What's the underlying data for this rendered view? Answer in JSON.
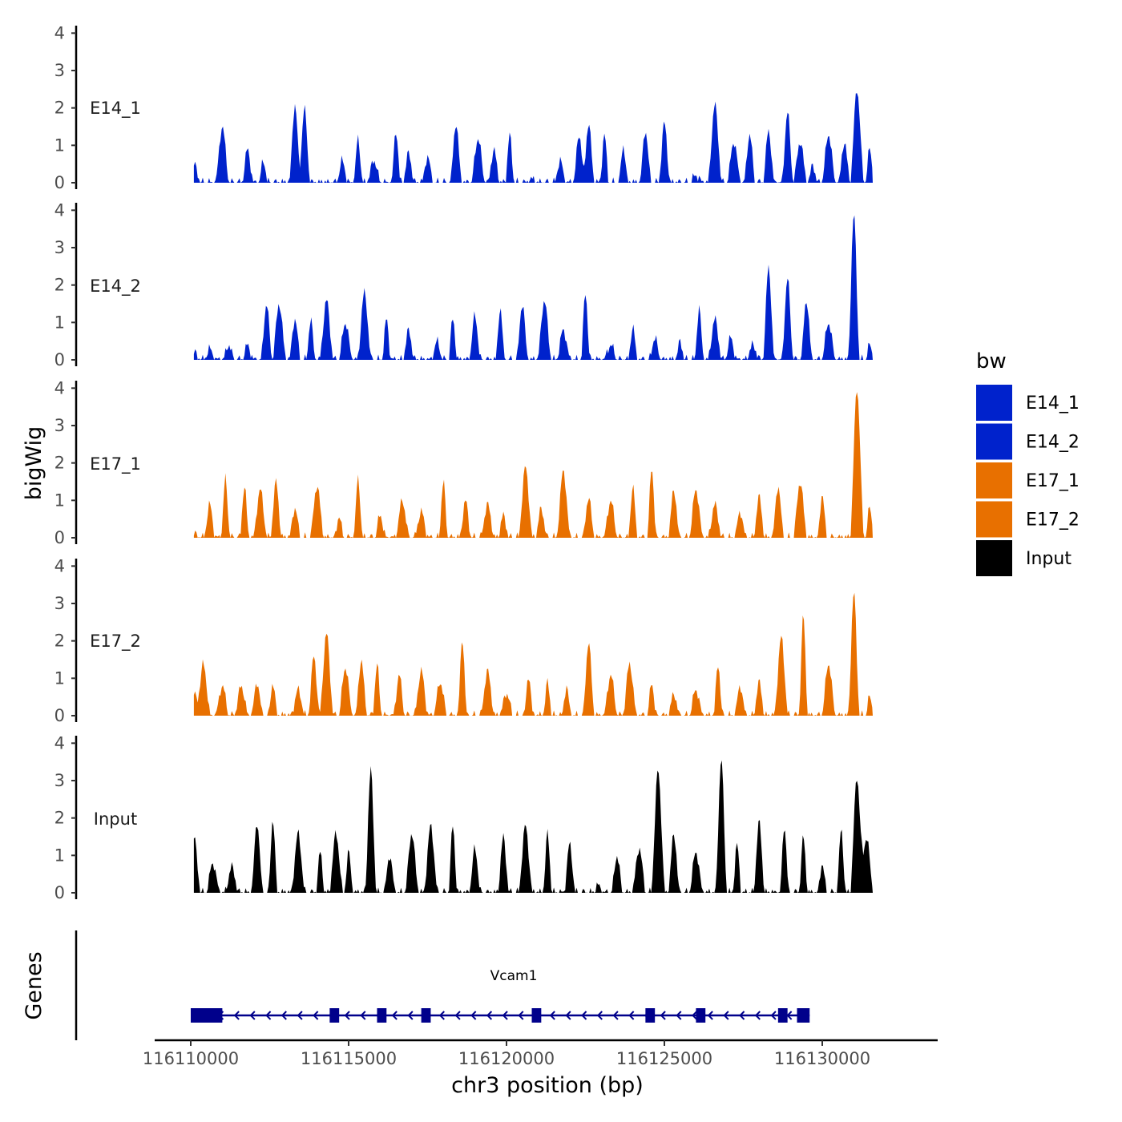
{
  "chart_data": {
    "type": "area",
    "title": "",
    "ylabel": "bigWig",
    "xlabel": "chr3 position (bp)",
    "xlim": [
      116106200,
      116133300
    ],
    "ylim": [
      0,
      4.2
    ],
    "yticks": [
      0,
      1,
      2,
      3,
      4
    ],
    "xticks": [
      116110000,
      116115000,
      116120000,
      116125000,
      116130000
    ],
    "xtick_labels": [
      "116110000",
      "116115000",
      "116120000",
      "116125000",
      "116130000"
    ],
    "x_start": 116110100,
    "x_end": 116131600,
    "tracks": [
      {
        "name": "E14_1",
        "color": "#0022CC",
        "peaks": [
          [
            116110100,
            0.5
          ],
          [
            116111000,
            1.5
          ],
          [
            116111800,
            0.9
          ],
          [
            116112300,
            0.6
          ],
          [
            116113300,
            2.1
          ],
          [
            116113600,
            2.0
          ],
          [
            116114800,
            0.6
          ],
          [
            116115300,
            1.2
          ],
          [
            116115800,
            0.6
          ],
          [
            116116500,
            1.4
          ],
          [
            116116900,
            0.8
          ],
          [
            116117500,
            0.7
          ],
          [
            116118400,
            1.6
          ],
          [
            116119100,
            1.2
          ],
          [
            116119600,
            0.9
          ],
          [
            116120100,
            1.3
          ],
          [
            116120800,
            0.1
          ],
          [
            116121700,
            0.6
          ],
          [
            116122300,
            1.3
          ],
          [
            116122600,
            1.6
          ],
          [
            116123100,
            1.3
          ],
          [
            116123700,
            1.0
          ],
          [
            116124400,
            1.4
          ],
          [
            116125000,
            1.6
          ],
          [
            116126000,
            0.2
          ],
          [
            116126600,
            2.1
          ],
          [
            116127200,
            1.1
          ],
          [
            116127700,
            1.3
          ],
          [
            116128300,
            1.4
          ],
          [
            116128900,
            1.9
          ],
          [
            116129300,
            1.1
          ],
          [
            116129700,
            0.5
          ],
          [
            116130200,
            1.3
          ],
          [
            116130700,
            1.1
          ],
          [
            116131100,
            2.5
          ],
          [
            116131500,
            0.9
          ]
        ]
      },
      {
        "name": "E14_2",
        "color": "#0022CC",
        "peaks": [
          [
            116110100,
            0.2
          ],
          [
            116110600,
            0.3
          ],
          [
            116111200,
            0.4
          ],
          [
            116111800,
            0.4
          ],
          [
            116112400,
            1.5
          ],
          [
            116112800,
            1.5
          ],
          [
            116113300,
            1.1
          ],
          [
            116113800,
            1.1
          ],
          [
            116114300,
            1.6
          ],
          [
            116114900,
            1.0
          ],
          [
            116115500,
            1.8
          ],
          [
            116116200,
            1.1
          ],
          [
            116116900,
            0.8
          ],
          [
            116117800,
            0.5
          ],
          [
            116118300,
            1.1
          ],
          [
            116119000,
            1.2
          ],
          [
            116119800,
            1.4
          ],
          [
            116120500,
            1.5
          ],
          [
            116121200,
            1.6
          ],
          [
            116121800,
            0.8
          ],
          [
            116122500,
            1.8
          ],
          [
            116123300,
            0.4
          ],
          [
            116124000,
            0.9
          ],
          [
            116124700,
            0.6
          ],
          [
            116125500,
            0.5
          ],
          [
            116126100,
            1.4
          ],
          [
            116126600,
            1.1
          ],
          [
            116127100,
            0.6
          ],
          [
            116127800,
            0.4
          ],
          [
            116128300,
            2.5
          ],
          [
            116128900,
            2.2
          ],
          [
            116129500,
            1.6
          ],
          [
            116130200,
            1.0
          ],
          [
            116131000,
            3.9
          ],
          [
            116131500,
            0.4
          ]
        ]
      },
      {
        "name": "E17_1",
        "color": "#E87000",
        "peaks": [
          [
            116110100,
            0.1
          ],
          [
            116110600,
            0.9
          ],
          [
            116111100,
            1.6
          ],
          [
            116111700,
            1.4
          ],
          [
            116112200,
            1.3
          ],
          [
            116112700,
            1.5
          ],
          [
            116113300,
            0.8
          ],
          [
            116114000,
            1.4
          ],
          [
            116114700,
            0.6
          ],
          [
            116115300,
            1.6
          ],
          [
            116116000,
            0.6
          ],
          [
            116116700,
            1.0
          ],
          [
            116117300,
            0.7
          ],
          [
            116118000,
            1.5
          ],
          [
            116118700,
            1.0
          ],
          [
            116119400,
            0.9
          ],
          [
            116119900,
            0.6
          ],
          [
            116120600,
            1.9
          ],
          [
            116121100,
            0.8
          ],
          [
            116121800,
            1.8
          ],
          [
            116122600,
            1.1
          ],
          [
            116123300,
            1.0
          ],
          [
            116124000,
            1.4
          ],
          [
            116124600,
            1.9
          ],
          [
            116125300,
            1.3
          ],
          [
            116126000,
            1.3
          ],
          [
            116126600,
            0.9
          ],
          [
            116127400,
            0.7
          ],
          [
            116128000,
            1.1
          ],
          [
            116128600,
            1.4
          ],
          [
            116129300,
            1.5
          ],
          [
            116130000,
            1.2
          ],
          [
            116131100,
            4.0
          ],
          [
            116131500,
            0.8
          ]
        ]
      },
      {
        "name": "E17_2",
        "color": "#E87000",
        "peaks": [
          [
            116110100,
            0.6
          ],
          [
            116110400,
            1.4
          ],
          [
            116111000,
            0.8
          ],
          [
            116111600,
            0.8
          ],
          [
            116112100,
            0.9
          ],
          [
            116112600,
            0.9
          ],
          [
            116113400,
            0.7
          ],
          [
            116113900,
            1.6
          ],
          [
            116114300,
            2.2
          ],
          [
            116114900,
            1.3
          ],
          [
            116115400,
            1.5
          ],
          [
            116115900,
            1.4
          ],
          [
            116116600,
            1.1
          ],
          [
            116117300,
            1.2
          ],
          [
            116117900,
            0.9
          ],
          [
            116118600,
            2.1
          ],
          [
            116119400,
            1.2
          ],
          [
            116120000,
            0.6
          ],
          [
            116120700,
            1.1
          ],
          [
            116121300,
            0.9
          ],
          [
            116121900,
            0.8
          ],
          [
            116122600,
            2.0
          ],
          [
            116123300,
            1.1
          ],
          [
            116123900,
            1.4
          ],
          [
            116124600,
            0.9
          ],
          [
            116125300,
            0.6
          ],
          [
            116126000,
            0.7
          ],
          [
            116126700,
            1.4
          ],
          [
            116127400,
            0.8
          ],
          [
            116128000,
            0.9
          ],
          [
            116128700,
            2.1
          ],
          [
            116129400,
            2.7
          ],
          [
            116130200,
            1.4
          ],
          [
            116131000,
            3.3
          ],
          [
            116131500,
            0.5
          ]
        ]
      },
      {
        "name": "Input",
        "color": "#000000",
        "peaks": [
          [
            116110100,
            1.5
          ],
          [
            116110700,
            0.8
          ],
          [
            116111300,
            0.7
          ],
          [
            116112100,
            1.9
          ],
          [
            116112600,
            2.0
          ],
          [
            116113400,
            1.6
          ],
          [
            116114100,
            1.1
          ],
          [
            116114600,
            1.6
          ],
          [
            116115000,
            1.1
          ],
          [
            116115700,
            3.3
          ],
          [
            116116300,
            1.0
          ],
          [
            116117000,
            1.6
          ],
          [
            116117600,
            1.8
          ],
          [
            116118300,
            1.8
          ],
          [
            116119000,
            1.2
          ],
          [
            116119900,
            1.5
          ],
          [
            116120600,
            1.8
          ],
          [
            116121300,
            1.6
          ],
          [
            116122000,
            1.3
          ],
          [
            116122900,
            0.2
          ],
          [
            116123500,
            1.0
          ],
          [
            116124200,
            1.2
          ],
          [
            116124800,
            3.3
          ],
          [
            116125300,
            1.6
          ],
          [
            116126000,
            1.1
          ],
          [
            116126800,
            3.6
          ],
          [
            116127300,
            1.3
          ],
          [
            116128000,
            1.9
          ],
          [
            116128800,
            1.8
          ],
          [
            116129400,
            1.5
          ],
          [
            116130000,
            0.8
          ],
          [
            116130600,
            1.7
          ],
          [
            116131100,
            3.1
          ],
          [
            116131400,
            1.5
          ]
        ]
      }
    ],
    "legend": {
      "title": "bw",
      "position": "right",
      "entries": [
        {
          "label": "E14_1",
          "color": "#0022CC"
        },
        {
          "label": "E14_2",
          "color": "#0022CC"
        },
        {
          "label": "E17_1",
          "color": "#E87000"
        },
        {
          "label": "E17_2",
          "color": "#E87000"
        },
        {
          "label": "Input",
          "color": "#000000"
        }
      ]
    },
    "gene_track": {
      "label": "Genes",
      "gene_name": "Vcam1",
      "start": 116110000,
      "end": 116129600,
      "strand": "-",
      "color": "#00008B",
      "exons": [
        [
          116110000,
          116111000
        ],
        [
          116114400,
          116114700
        ],
        [
          116115900,
          116116200
        ],
        [
          116117300,
          116117600
        ],
        [
          116120800,
          116121100
        ],
        [
          116124400,
          116124700
        ],
        [
          116126000,
          116126300
        ],
        [
          116128600,
          116128900
        ],
        [
          116129200,
          116129600
        ]
      ]
    }
  }
}
